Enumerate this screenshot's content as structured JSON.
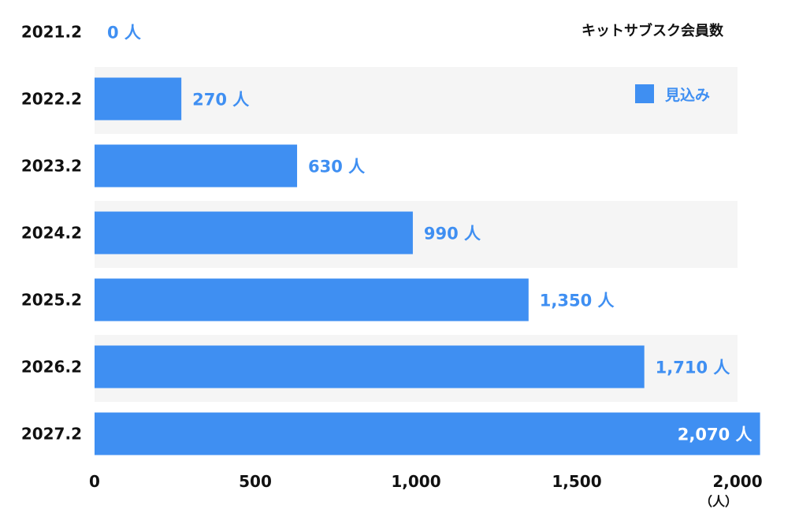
{
  "chart_data": {
    "type": "bar",
    "orientation": "horizontal",
    "title": "キットサブスク会員数",
    "categories": [
      "2021.2",
      "2022.2",
      "2023.2",
      "2024.2",
      "2025.2",
      "2026.2",
      "2027.2"
    ],
    "series": [
      {
        "name": "見込み",
        "values": [
          0,
          270,
          630,
          990,
          1350,
          1710,
          2070
        ],
        "value_labels": [
          "0 人",
          "270 人",
          "630 人",
          "990 人",
          "1,350 人",
          "1,710 人",
          "2,070 人"
        ]
      }
    ],
    "x_ticks": [
      0,
      500,
      1000,
      1500,
      2000
    ],
    "x_tick_labels": [
      "0",
      "500",
      "1,000",
      "1,500",
      "2,000"
    ],
    "x_unit": "（人）",
    "xlim": [
      0,
      2000
    ],
    "legend_position": "top-right",
    "grid": false,
    "row_banding": true
  },
  "colors": {
    "bar": "#3f8ff2",
    "value_label_outside": "#3f8ff2",
    "value_label_inside": "#ffffff",
    "band": "#f5f5f5",
    "text": "#111111"
  }
}
